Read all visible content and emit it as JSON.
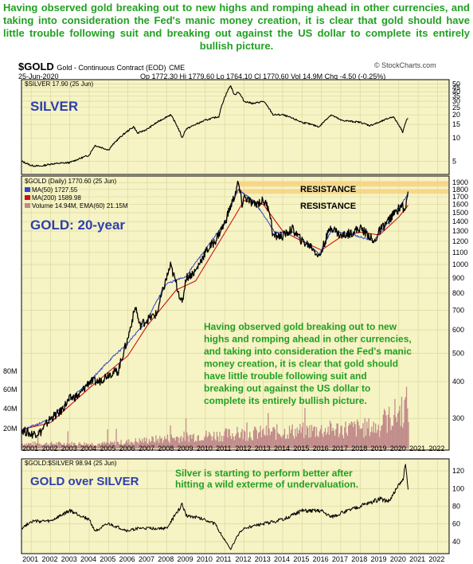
{
  "headline": "Having observed gold breaking out to new highs and romping ahead in other currencies, and taking into consideration the Fed's manic money creation, it is clear that gold should have little trouble following suit and breaking out against the US dollar to complete its entirely bullish picture.",
  "header": {
    "symbol": "$GOLD",
    "description": "Gold - Continuous Contract (EOD)",
    "exchange": "CME",
    "date": "25-Jun-2020",
    "ohlc": "Op 1772.30  Hi 1779.60  Lo 1764.10  Cl 1770.60  Vol 14.9M  Chg -4.50 (-0.25%)",
    "watermark": "© StockCharts.com"
  },
  "colors": {
    "panel_bg": "#f6f3c4",
    "price": "#000000",
    "ma50": "#3344cc",
    "ma200": "#cc1111",
    "volume": "#c08b8b",
    "grid": "#d8d49a",
    "resistance": "#f7d07a",
    "annotation": "#22a022",
    "title": "#2c3fae"
  },
  "chart_data": [
    {
      "type": "line",
      "panel": "top",
      "label": "$SILVER 17.90 (25 Jun)",
      "title": "SILVER",
      "log_scale": true,
      "y_ticks": [
        5,
        10,
        15,
        20,
        25,
        30,
        35,
        40,
        45,
        50
      ],
      "ylim": [
        3.7,
        52
      ],
      "series": [
        {
          "name": "$SILVER",
          "x": [
            2000.5,
            2001,
            2001.5,
            2002,
            2003,
            2004,
            2004.3,
            2005,
            2006.3,
            2006.5,
            2007,
            2008.2,
            2008.8,
            2009,
            2010,
            2010.7,
            2011.3,
            2011.5,
            2011.7,
            2012,
            2012.5,
            2013,
            2013.5,
            2014,
            2015,
            2015.9,
            2016.5,
            2017,
            2018,
            2018.5,
            2019,
            2019.7,
            2020.2,
            2020.4,
            2020.48
          ],
          "values": [
            5.0,
            4.4,
            4.3,
            4.6,
            4.8,
            6.0,
            8.0,
            7.0,
            14.0,
            11.5,
            13.0,
            20.0,
            10.0,
            13.0,
            17.0,
            19.0,
            48.0,
            36.0,
            40.0,
            30.0,
            28.0,
            30.0,
            20.0,
            20.0,
            16.0,
            14.0,
            20.0,
            17.0,
            16.0,
            14.5,
            16.0,
            19.0,
            12.0,
            17.0,
            17.9
          ]
        }
      ]
    },
    {
      "type": "line",
      "panel": "middle",
      "label": "$GOLD (Daily) 1770.60 (25 Jun)",
      "title": "GOLD: 20-year",
      "log_scale": true,
      "y_ticks": [
        300,
        400,
        500,
        600,
        700,
        800,
        900,
        1000,
        1100,
        1200,
        1300,
        1400,
        1500,
        1600,
        1700,
        1800,
        1900
      ],
      "ylim": [
        240,
        1950
      ],
      "volume_ticks": [
        "20M",
        "40M",
        "60M",
        "80M"
      ],
      "legend": [
        "MA(50) 1727.55",
        "MA(200) 1589.98",
        "Volume 14.94M, EMA(60) 21.15M"
      ],
      "resistance_levels": [
        {
          "label": "RESISTANCE",
          "low": 1840,
          "high": 1920
        },
        {
          "label": "RESISTANCE",
          "low": 1740,
          "high": 1800
        }
      ],
      "annotation": "Having observed gold breaking out to new highs and romping ahead in other currencies, and taking into consideration the Fed's manic money creation, it is clear that gold should have little trouble following suit and breaking out against the US dollar to complete its entirely bullish picture.",
      "series": [
        {
          "name": "$GOLD",
          "x": [
            2000.5,
            2001,
            2001.5,
            2002,
            2002.5,
            2003,
            2003.5,
            2004,
            2004.5,
            2005,
            2005.5,
            2006,
            2006.4,
            2006.6,
            2007,
            2007.5,
            2008,
            2008.2,
            2008.8,
            2009,
            2009.5,
            2010,
            2010.5,
            2011,
            2011.5,
            2011.7,
            2011.9,
            2012,
            2012.5,
            2013,
            2013.3,
            2013.5,
            2014,
            2014.5,
            2015,
            2015.5,
            2015.9,
            2016.5,
            2017,
            2017.5,
            2018,
            2018.5,
            2018.7,
            2019,
            2019.5,
            2019.8,
            2020.2,
            2020.3,
            2020.48
          ],
          "values": [
            275,
            265,
            270,
            300,
            315,
            350,
            360,
            400,
            400,
            425,
            435,
            560,
            720,
            620,
            650,
            680,
            900,
            990,
            730,
            900,
            950,
            1100,
            1200,
            1380,
            1700,
            1900,
            1600,
            1700,
            1600,
            1650,
            1550,
            1250,
            1250,
            1320,
            1200,
            1150,
            1060,
            1350,
            1250,
            1280,
            1330,
            1250,
            1180,
            1300,
            1420,
            1500,
            1600,
            1480,
            1770.6
          ]
        },
        {
          "name": "MA(50)",
          "x": [
            2000.5,
            2002,
            2004,
            2006,
            2007,
            2008,
            2009,
            2010,
            2011,
            2011.7,
            2012.5,
            2013.6,
            2014.5,
            2015.9,
            2016.5,
            2017.5,
            2018.7,
            2019.5,
            2020.48
          ],
          "values": [
            273,
            298,
            398,
            540,
            645,
            860,
            910,
            1120,
            1380,
            1800,
            1640,
            1280,
            1290,
            1080,
            1300,
            1270,
            1200,
            1400,
            1727.55
          ]
        },
        {
          "name": "MA(200)",
          "x": [
            2000.5,
            2002,
            2004,
            2006,
            2007,
            2008.5,
            2009.5,
            2010.5,
            2011.5,
            2012,
            2013,
            2014,
            2015,
            2016,
            2017,
            2018,
            2019,
            2020,
            2020.48
          ],
          "values": [
            275,
            290,
            380,
            490,
            620,
            820,
            880,
            1130,
            1450,
            1650,
            1600,
            1300,
            1200,
            1120,
            1240,
            1290,
            1260,
            1450,
            1589.98
          ]
        }
      ]
    },
    {
      "type": "line",
      "panel": "bottom",
      "label": "$GOLD:$SILVER 98.94 (25 Jun)",
      "title": "GOLD over SILVER",
      "annotation": "Silver is starting to perform better after hitting a wild exterme of undervaluation.",
      "y_ticks": [
        40,
        60,
        80,
        100,
        120
      ],
      "ylim": [
        30,
        130
      ],
      "series": [
        {
          "name": "$GOLD:$SILVER",
          "x": [
            2000.5,
            2001,
            2002,
            2003,
            2004,
            2004.3,
            2005,
            2006,
            2006.5,
            2007,
            2008,
            2008.8,
            2009,
            2010,
            2010.5,
            2011.3,
            2011.7,
            2012,
            2013,
            2014,
            2015,
            2016,
            2016.5,
            2017,
            2018,
            2019,
            2019.5,
            2020.2,
            2020.35,
            2020.48
          ],
          "values": [
            55,
            63,
            63,
            75,
            65,
            52,
            60,
            52,
            55,
            55,
            55,
            82,
            70,
            65,
            60,
            31,
            48,
            55,
            60,
            65,
            75,
            75,
            68,
            72,
            80,
            88,
            86,
            110,
            125,
            98.94
          ]
        }
      ]
    }
  ],
  "x_axis": {
    "labels": [
      "2001",
      "2002",
      "2003",
      "2004",
      "2005",
      "2006",
      "2007",
      "2008",
      "2009",
      "2010",
      "2011",
      "2012",
      "2013",
      "2014",
      "2015",
      "2016",
      "2017",
      "2018",
      "2019",
      "2020",
      "2021",
      "2022"
    ]
  }
}
